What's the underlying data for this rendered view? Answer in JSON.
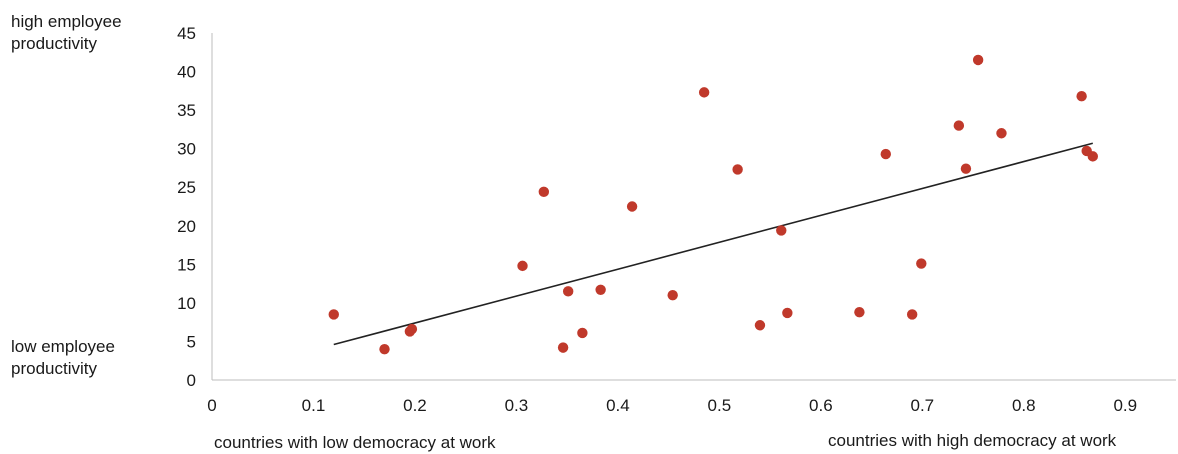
{
  "chart_data": {
    "type": "scatter",
    "y_high_label": [
      "high employee",
      "productivity"
    ],
    "y_low_label": [
      "low employee",
      "productivity"
    ],
    "x_low_label": "countries with low democracy at work",
    "x_high_label": "countries with high democracy at work",
    "xlim": [
      0,
      0.95
    ],
    "ylim": [
      0,
      45
    ],
    "x_ticks": [
      "0",
      "0.1",
      "0.2",
      "0.3",
      "0.4",
      "0.5",
      "0.6",
      "0.7",
      "0.8",
      "0.9"
    ],
    "x_tick_values": [
      0,
      0.1,
      0.2,
      0.3,
      0.4,
      0.5,
      0.6,
      0.7,
      0.8,
      0.9
    ],
    "y_ticks": [
      "0",
      "5",
      "10",
      "15",
      "20",
      "25",
      "30",
      "35",
      "40",
      "45"
    ],
    "y_tick_values": [
      0,
      5,
      10,
      15,
      20,
      25,
      30,
      35,
      40,
      45
    ],
    "grid": false,
    "point_color": "#c0392b",
    "line_color": "#222222",
    "points": [
      {
        "x": 0.12,
        "y": 8.5
      },
      {
        "x": 0.17,
        "y": 4.0
      },
      {
        "x": 0.195,
        "y": 6.3
      },
      {
        "x": 0.197,
        "y": 6.6
      },
      {
        "x": 0.306,
        "y": 14.8
      },
      {
        "x": 0.327,
        "y": 24.4
      },
      {
        "x": 0.346,
        "y": 4.2
      },
      {
        "x": 0.351,
        "y": 11.5
      },
      {
        "x": 0.365,
        "y": 6.1
      },
      {
        "x": 0.383,
        "y": 11.7
      },
      {
        "x": 0.414,
        "y": 22.5
      },
      {
        "x": 0.454,
        "y": 11.0
      },
      {
        "x": 0.485,
        "y": 37.3
      },
      {
        "x": 0.518,
        "y": 27.3
      },
      {
        "x": 0.54,
        "y": 7.1
      },
      {
        "x": 0.561,
        "y": 19.4
      },
      {
        "x": 0.567,
        "y": 8.7
      },
      {
        "x": 0.638,
        "y": 8.8
      },
      {
        "x": 0.664,
        "y": 29.3
      },
      {
        "x": 0.69,
        "y": 8.5
      },
      {
        "x": 0.699,
        "y": 15.1
      },
      {
        "x": 0.736,
        "y": 33.0
      },
      {
        "x": 0.743,
        "y": 27.4
      },
      {
        "x": 0.755,
        "y": 41.5
      },
      {
        "x": 0.778,
        "y": 32.0
      },
      {
        "x": 0.857,
        "y": 36.8
      },
      {
        "x": 0.862,
        "y": 29.7
      },
      {
        "x": 0.868,
        "y": 29.0
      }
    ],
    "trendline": {
      "x1": 0.12,
      "y1": 4.6,
      "x2": 0.868,
      "y2": 30.7
    }
  }
}
